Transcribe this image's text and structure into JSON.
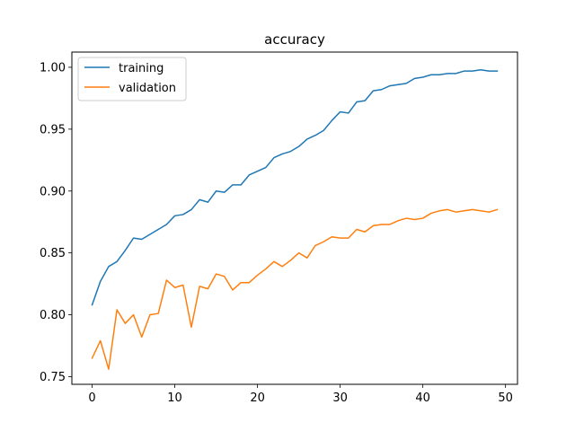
{
  "chart_data": {
    "type": "line",
    "title": "accuracy",
    "xlabel": "",
    "ylabel": "",
    "xlim": [
      -2.45,
      51.45
    ],
    "ylim": [
      0.7438,
      1.0123
    ],
    "grid": false,
    "legend_placement": "top-left",
    "x_ticks": [
      0,
      10,
      20,
      30,
      40,
      50
    ],
    "y_ticks": [
      0.75,
      0.8,
      0.85,
      0.9,
      0.95,
      1.0
    ],
    "x_tick_labels": [
      "0",
      "10",
      "20",
      "30",
      "40",
      "50"
    ],
    "y_tick_labels": [
      "0.75",
      "0.80",
      "0.85",
      "0.90",
      "0.95",
      "1.00"
    ],
    "x": [
      0,
      1,
      2,
      3,
      4,
      5,
      6,
      7,
      8,
      9,
      10,
      11,
      12,
      13,
      14,
      15,
      16,
      17,
      18,
      19,
      20,
      21,
      22,
      23,
      24,
      25,
      26,
      27,
      28,
      29,
      30,
      31,
      32,
      33,
      34,
      35,
      36,
      37,
      38,
      39,
      40,
      41,
      42,
      43,
      44,
      45,
      46,
      47,
      48,
      49
    ],
    "series": [
      {
        "name": "training",
        "color": "#1f77b4",
        "values": [
          0.808,
          0.827,
          0.839,
          0.843,
          0.852,
          0.862,
          0.861,
          0.865,
          0.869,
          0.873,
          0.88,
          0.881,
          0.885,
          0.893,
          0.891,
          0.9,
          0.899,
          0.905,
          0.905,
          0.913,
          0.916,
          0.919,
          0.927,
          0.93,
          0.932,
          0.936,
          0.942,
          0.945,
          0.949,
          0.957,
          0.964,
          0.963,
          0.972,
          0.973,
          0.981,
          0.982,
          0.985,
          0.986,
          0.987,
          0.991,
          0.992,
          0.994,
          0.994,
          0.995,
          0.995,
          0.997,
          0.997,
          0.998,
          0.997,
          0.997
        ]
      },
      {
        "name": "validation",
        "color": "#ff7f0e",
        "values": [
          0.765,
          0.779,
          0.756,
          0.804,
          0.793,
          0.8,
          0.782,
          0.8,
          0.801,
          0.828,
          0.822,
          0.824,
          0.79,
          0.823,
          0.821,
          0.833,
          0.831,
          0.82,
          0.826,
          0.826,
          0.832,
          0.837,
          0.843,
          0.839,
          0.844,
          0.85,
          0.846,
          0.856,
          0.859,
          0.863,
          0.862,
          0.862,
          0.869,
          0.867,
          0.872,
          0.873,
          0.873,
          0.876,
          0.878,
          0.877,
          0.878,
          0.882,
          0.884,
          0.885,
          0.883,
          0.884,
          0.885,
          0.884,
          0.883,
          0.885
        ]
      }
    ]
  }
}
